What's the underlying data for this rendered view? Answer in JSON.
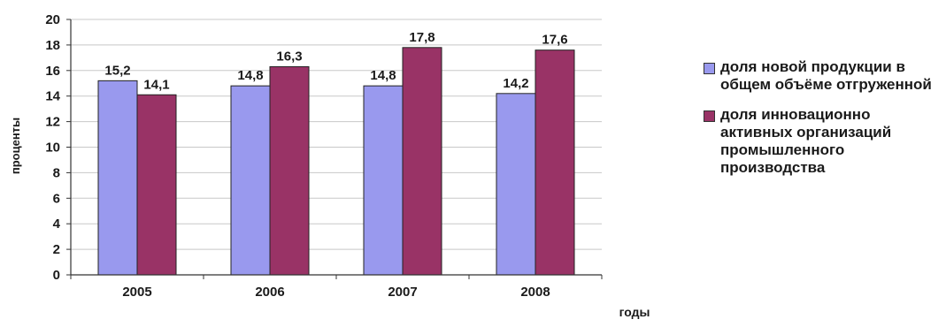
{
  "chart_data": {
    "type": "bar",
    "categories": [
      "2005",
      "2006",
      "2007",
      "2008"
    ],
    "series": [
      {
        "name": "доля новой продукции в общем объёме отгруженной",
        "values": [
          15.2,
          14.8,
          14.8,
          14.2
        ],
        "labels": [
          "15,2",
          "14,8",
          "14,8",
          "14,2"
        ],
        "color": "#9999ee"
      },
      {
        "name": "доля инновационно активных организаций промышленного производства",
        "values": [
          14.1,
          16.3,
          17.8,
          17.6
        ],
        "labels": [
          "14,1",
          "16,3",
          "17,8",
          "17,6"
        ],
        "color": "#993366"
      }
    ],
    "xlabel": "годы",
    "ylabel": "проценты",
    "ylim": [
      0,
      20
    ],
    "yticks": [
      "0",
      "2",
      "4",
      "6",
      "8",
      "10",
      "12",
      "14",
      "16",
      "18",
      "20"
    ],
    "grid": true,
    "legend": "right"
  }
}
